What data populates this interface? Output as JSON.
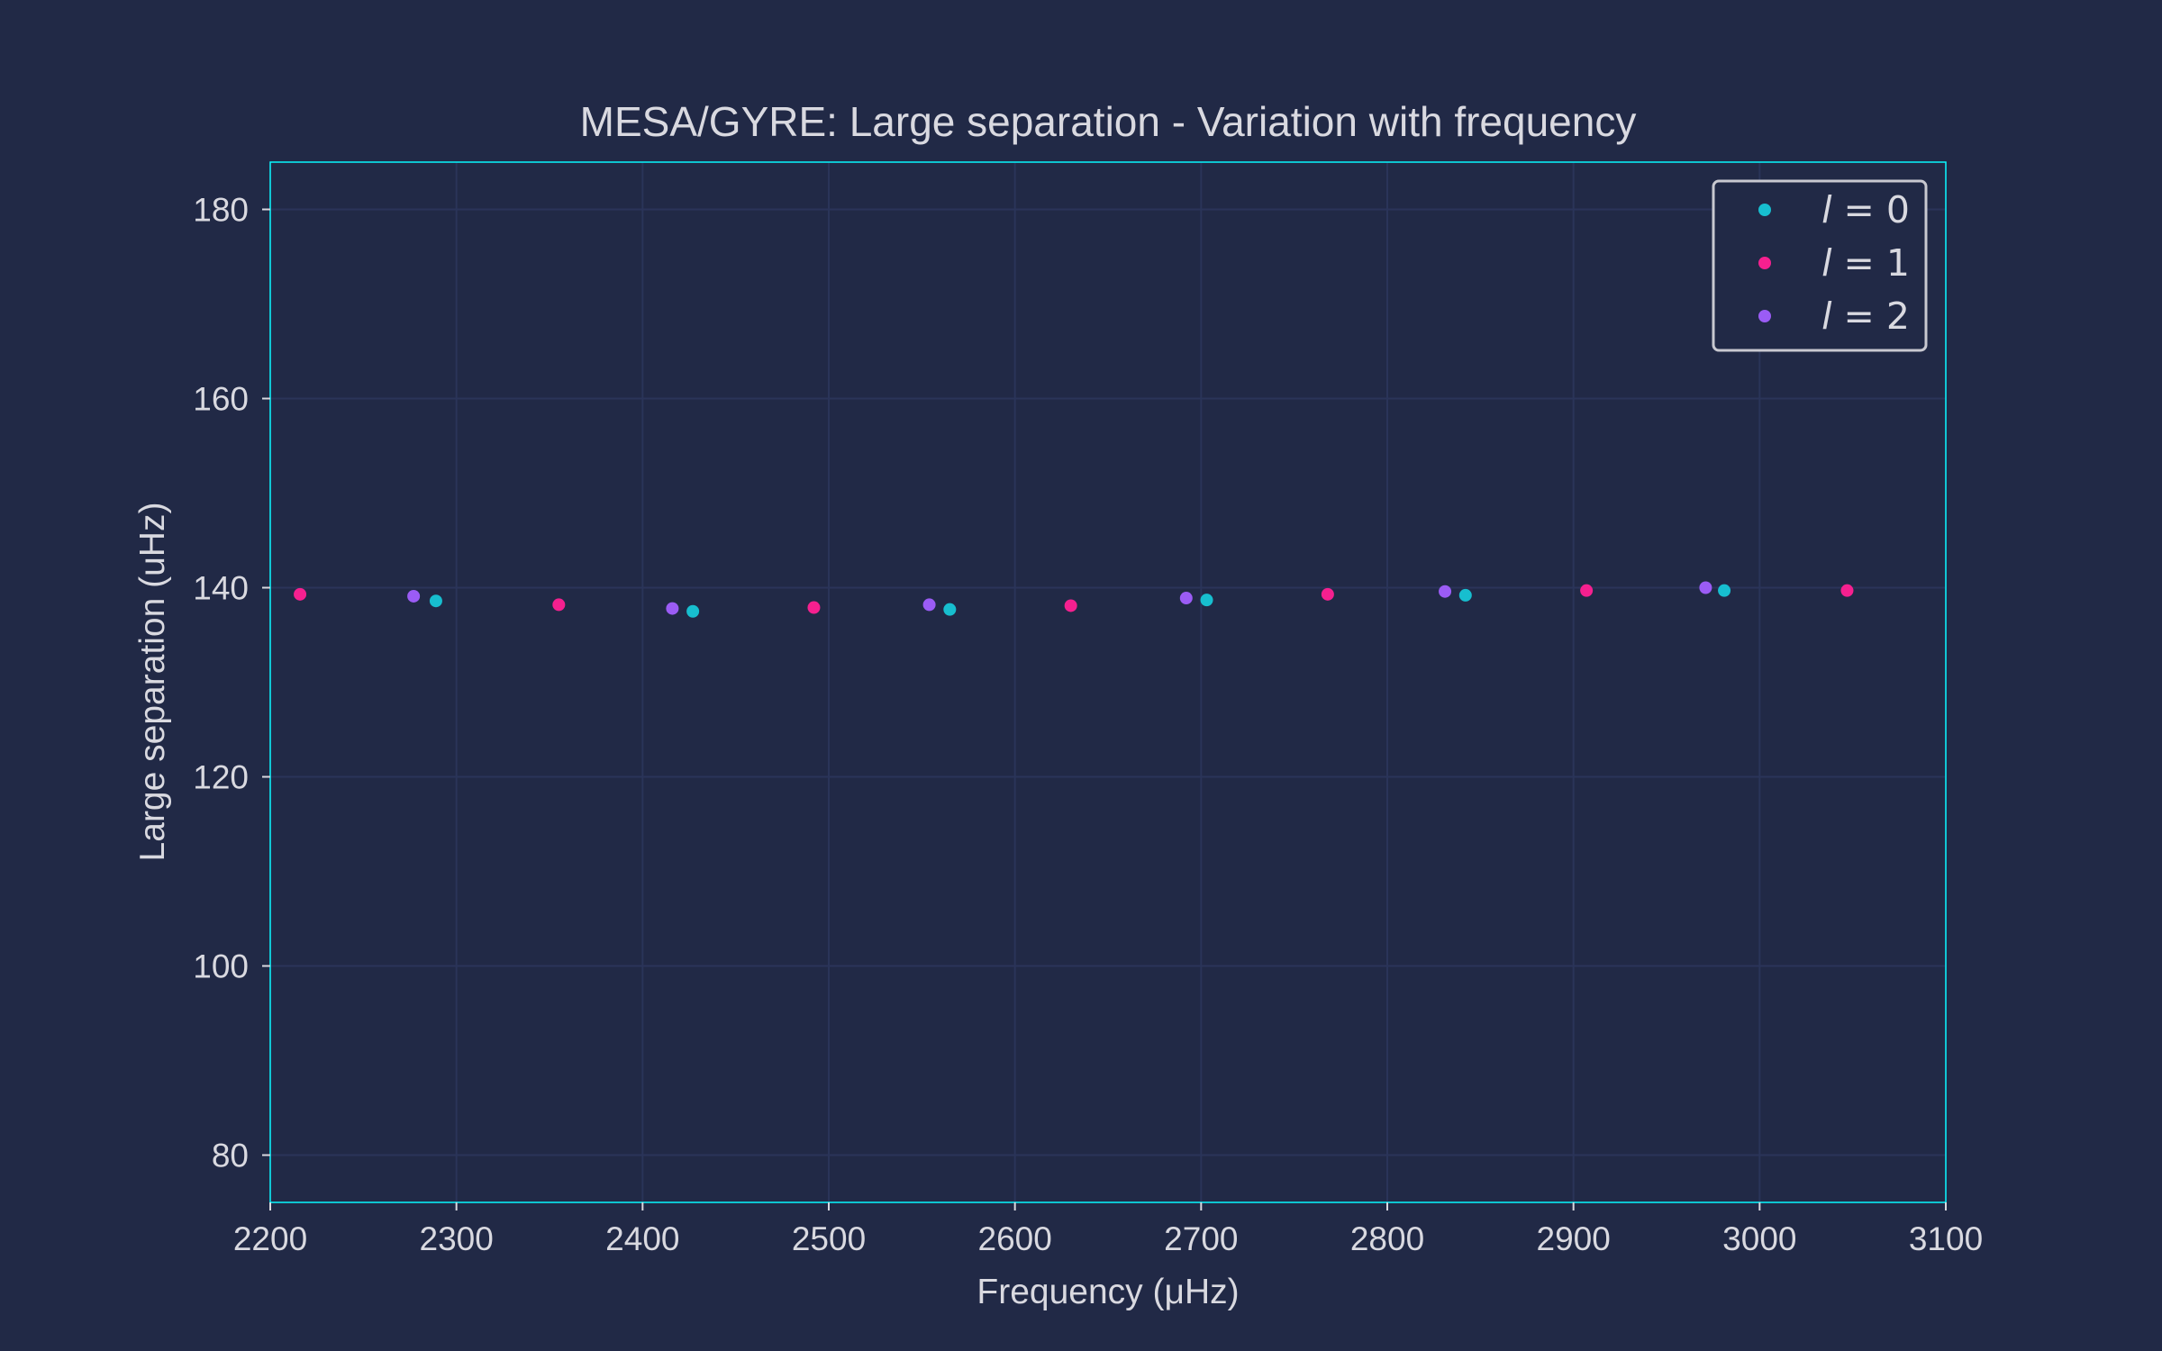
{
  "chart_data": {
    "type": "scatter",
    "title": "MESA/GYRE: Large separation - Variation with frequency",
    "xlabel": "Frequency (μHz)",
    "ylabel": "Large separation (uHz)",
    "xlim": [
      2200,
      3100
    ],
    "ylim": [
      75,
      185
    ],
    "xticks": [
      2200,
      2300,
      2400,
      2500,
      2600,
      2700,
      2800,
      2900,
      3000,
      3100
    ],
    "yticks": [
      80,
      100,
      120,
      140,
      160,
      180
    ],
    "grid": true,
    "legend_position": "top-right",
    "background_color": "#212946",
    "grid_color": "#2a3459",
    "axis_color": "#08f7fe",
    "series": [
      {
        "name": "l = 0",
        "legend_var": "l",
        "legend_value": "0",
        "color": "#17becf",
        "points": [
          {
            "x": 2289,
            "y": 138.6
          },
          {
            "x": 2427,
            "y": 137.5
          },
          {
            "x": 2565,
            "y": 137.7
          },
          {
            "x": 2703,
            "y": 138.7
          },
          {
            "x": 2842,
            "y": 139.2
          },
          {
            "x": 2981,
            "y": 139.7
          }
        ]
      },
      {
        "name": "l = 1",
        "legend_var": "l",
        "legend_value": "1",
        "color": "#f5208f",
        "points": [
          {
            "x": 2216,
            "y": 139.3
          },
          {
            "x": 2355,
            "y": 138.2
          },
          {
            "x": 2492,
            "y": 137.9
          },
          {
            "x": 2630,
            "y": 138.1
          },
          {
            "x": 2768,
            "y": 139.3
          },
          {
            "x": 2907,
            "y": 139.7
          },
          {
            "x": 3047,
            "y": 139.7
          }
        ]
      },
      {
        "name": "l = 2",
        "legend_var": "l",
        "legend_value": "2",
        "color": "#9b5cf5",
        "points": [
          {
            "x": 2277,
            "y": 139.1
          },
          {
            "x": 2416,
            "y": 137.8
          },
          {
            "x": 2554,
            "y": 138.2
          },
          {
            "x": 2692,
            "y": 138.9
          },
          {
            "x": 2831,
            "y": 139.6
          },
          {
            "x": 2971,
            "y": 140.0
          }
        ]
      }
    ]
  }
}
